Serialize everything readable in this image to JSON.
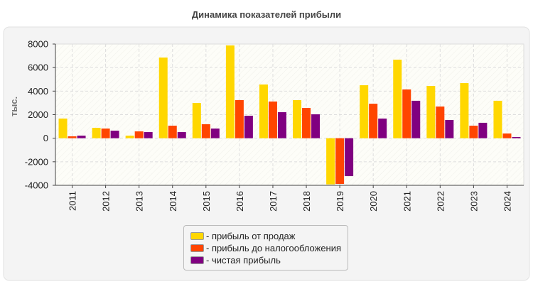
{
  "chart_data": {
    "type": "bar",
    "title": "Динамика показателей прибыли",
    "ylabel": "тыс.",
    "xlabel": "",
    "ylim": [
      -4000,
      8000
    ],
    "yticks": [
      -4000,
      -2000,
      0,
      2000,
      4000,
      6000,
      8000
    ],
    "grid": true,
    "legend_position": "bottom",
    "categories": [
      "2011",
      "2012",
      "2013",
      "2014",
      "2015",
      "2016",
      "2017",
      "2018",
      "2019",
      "2020",
      "2021",
      "2022",
      "2023",
      "2024"
    ],
    "series": [
      {
        "name": "- прибыль от продаж",
        "color": "#FFD700",
        "values": [
          1670,
          880,
          220,
          6850,
          2990,
          7880,
          4560,
          3240,
          -3920,
          4500,
          6670,
          4440,
          4680,
          3180
        ]
      },
      {
        "name": "- прибыль до налогообложения",
        "color": "#FF4500",
        "values": [
          160,
          820,
          580,
          1065,
          1190,
          3240,
          3115,
          2570,
          -3880,
          2930,
          4140,
          2690,
          1065,
          400
        ]
      },
      {
        "name": "- чистая прибыль",
        "color": "#800080",
        "values": [
          220,
          640,
          520,
          520,
          820,
          1910,
          2210,
          2030,
          -3220,
          1670,
          3180,
          1550,
          1310,
          100
        ]
      }
    ]
  }
}
